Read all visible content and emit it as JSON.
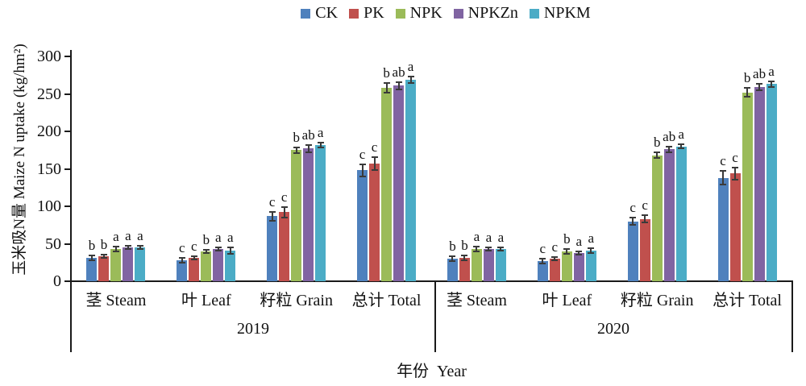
{
  "legend": {
    "items": [
      {
        "label": "CK",
        "color": "#4F81BD"
      },
      {
        "label": "PK",
        "color": "#C0504D"
      },
      {
        "label": "NPK",
        "color": "#9BBB59"
      },
      {
        "label": "NPKZn",
        "color": "#8064A2"
      },
      {
        "label": "NPKM",
        "color": "#4BACC6"
      }
    ]
  },
  "y_axis": {
    "title": "玉米吸N量 Maize N uptake (kg/hm²)",
    "ticks": [
      0,
      50,
      100,
      150,
      200,
      250,
      300
    ],
    "max": 300
  },
  "x_axis": {
    "title": "年份  Year",
    "years": [
      "2019",
      "2020"
    ],
    "categories": [
      "茎 Steam",
      "叶 Leaf",
      "籽粒 Grain",
      "总计 Total"
    ]
  },
  "chart_data": {
    "type": "bar",
    "title": "",
    "xlabel": "年份 Year",
    "ylabel": "玉米吸N量 Maize N uptake (kg/hm²)",
    "ylim": [
      0,
      300
    ],
    "grid": false,
    "legend_position": "top-center",
    "group_labels": [
      "2019 茎 Steam",
      "2019 叶 Leaf",
      "2019 籽粒 Grain",
      "2019 总计 Total",
      "2020 茎 Steam",
      "2020 叶 Leaf",
      "2020 籽粒 Grain",
      "2020 总计 Total"
    ],
    "series": [
      {
        "name": "CK",
        "color": "#4F81BD",
        "values": [
          31,
          28,
          87,
          148,
          30,
          27,
          80,
          138
        ],
        "errors": [
          3,
          3,
          6,
          8,
          3,
          3,
          5,
          9
        ],
        "letters": [
          "b",
          "c",
          "c",
          "c",
          "b",
          "c",
          "c",
          "c"
        ]
      },
      {
        "name": "PK",
        "color": "#C0504D",
        "values": [
          33,
          31,
          92,
          157,
          31,
          30,
          83,
          144
        ],
        "errors": [
          2,
          2,
          7,
          9,
          3,
          2,
          5,
          8
        ],
        "letters": [
          "b",
          "c",
          "c",
          "c",
          "b",
          "c",
          "c",
          "c"
        ]
      },
      {
        "name": "NPK",
        "color": "#9BBB59",
        "values": [
          43,
          40,
          175,
          258,
          43,
          40,
          168,
          252
        ],
        "errors": [
          3,
          2,
          4,
          6,
          3,
          3,
          4,
          6
        ],
        "letters": [
          "a",
          "b",
          "b",
          "b",
          "a",
          "b",
          "b",
          "b"
        ]
      },
      {
        "name": "NPKZn",
        "color": "#8064A2",
        "values": [
          45,
          43,
          177,
          261,
          43,
          38,
          176,
          259
        ],
        "errors": [
          2,
          2,
          5,
          5,
          2,
          2,
          4,
          4
        ],
        "letters": [
          "a",
          "a",
          "ab",
          "ab",
          "a",
          "a",
          "ab",
          "ab"
        ]
      },
      {
        "name": "NPKM",
        "color": "#4BACC6",
        "values": [
          45,
          41,
          182,
          269,
          43,
          41,
          180,
          263
        ],
        "errors": [
          2,
          4,
          3,
          4,
          2,
          3,
          3,
          4
        ],
        "letters": [
          "a",
          "a",
          "a",
          "a",
          "a",
          "a",
          "a",
          "a"
        ]
      }
    ]
  }
}
